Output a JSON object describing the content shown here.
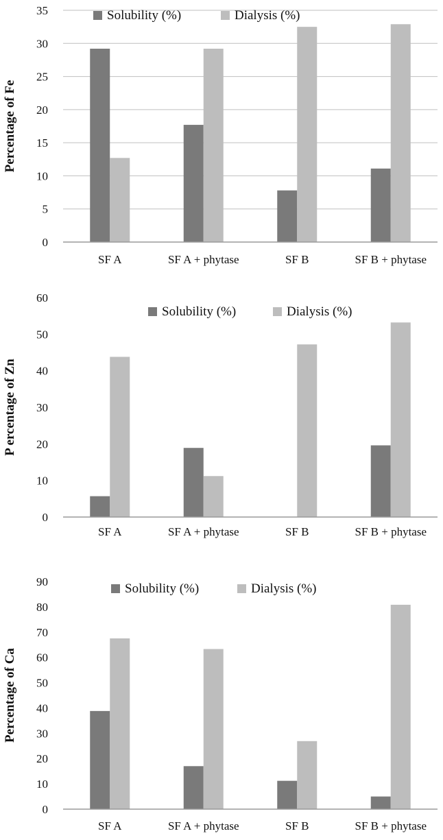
{
  "colors": {
    "solubility": "#7a7a7a",
    "dialysis": "#bdbdbd",
    "grid": "#bfbfbf",
    "axis": "#9a9a9a"
  },
  "chart_data": [
    {
      "type": "bar",
      "categories": [
        "SF A",
        "SF A + phytase",
        "SF B",
        "SF B + phytase"
      ],
      "series": [
        {
          "name": "Solubility (%)",
          "values": [
            29.2,
            17.7,
            7.8,
            11.1
          ]
        },
        {
          "name": "Dialysis (%)",
          "values": [
            12.7,
            29.2,
            32.5,
            32.9
          ]
        }
      ],
      "ylabel": "Percentage of Fe",
      "ylim": [
        0,
        35
      ],
      "yticks": [
        "0",
        "5",
        "10",
        "15",
        "20",
        "25",
        "30",
        "35"
      ],
      "legend": "top-center",
      "grid": true
    },
    {
      "type": "bar",
      "categories": [
        "SF A",
        "SF A + phytase",
        "SF B",
        "SF B + phytase"
      ],
      "series": [
        {
          "name": "Solubility (%)",
          "values": [
            5.7,
            18.9,
            0,
            19.6
          ]
        },
        {
          "name": "Dialysis (%)",
          "values": [
            43.8,
            11.2,
            47.2,
            53.2
          ]
        }
      ],
      "ylabel": "P ercentage of Zn",
      "ylim": [
        0,
        60
      ],
      "yticks": [
        "0",
        "10",
        "20",
        "30",
        "40",
        "50",
        "60"
      ],
      "legend": "top-center",
      "grid": false
    },
    {
      "type": "bar",
      "categories": [
        "SF A",
        "SF A + phytase",
        "SF B",
        "SF B + phytase"
      ],
      "series": [
        {
          "name": "Solubility (%)",
          "values": [
            38.8,
            17.0,
            11.2,
            5.0
          ]
        },
        {
          "name": "Dialysis (%)",
          "values": [
            67.5,
            63.3,
            26.9,
            80.8
          ]
        }
      ],
      "ylabel": "Percentage of Ca",
      "ylim": [
        0,
        90
      ],
      "yticks": [
        "0",
        "10",
        "20",
        "30",
        "40",
        "50",
        "60",
        "70",
        "80",
        "90"
      ],
      "legend": "top-center",
      "grid": false
    }
  ]
}
